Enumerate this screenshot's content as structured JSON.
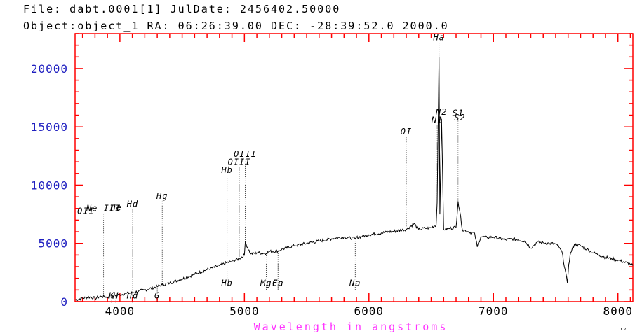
{
  "header": {
    "line1": "File: dabt.0001[1]   JulDate: 2456402.50000",
    "line2": "Object:object_1    RA: 06:26:39.00 DEC: -28:39:52.0 2000.0"
  },
  "corner_mark": "rv",
  "colors": {
    "frame": "#ff0000",
    "ytick_text": "#2020c0",
    "xlabel": "#ff33ff",
    "spectrum": "#000000"
  },
  "chart_data": {
    "type": "line",
    "xlabel": "Wavelength in angstroms",
    "ylabel": "",
    "xlim": [
      3640,
      8120
    ],
    "ylim": [
      0,
      23000
    ],
    "x_ticks": [
      4000,
      5000,
      6000,
      7000,
      8000
    ],
    "x_tick_labels": [
      "4000",
      "5000",
      "6000",
      "7000",
      "8000"
    ],
    "y_ticks": [
      0,
      5000,
      10000,
      15000,
      20000
    ],
    "y_tick_labels": [
      "0",
      "5000",
      "10000",
      "15000",
      "20000"
    ],
    "grid": false,
    "series": [
      {
        "x": [
          3640,
          3700,
          3760,
          3800,
          3850,
          3900,
          3950,
          4000,
          4050,
          4100,
          4150,
          4200,
          4300,
          4340,
          4400,
          4500,
          4600,
          4700,
          4800,
          4861,
          4900,
          4959,
          5000,
          5007,
          5050,
          5100,
          5175,
          5200,
          5270,
          5300,
          5400,
          5500,
          5600,
          5700,
          5800,
          5890,
          5900,
          6000,
          6100,
          6200,
          6300,
          6363,
          6400,
          6450,
          6500,
          6540,
          6548,
          6563,
          6570,
          6583,
          6600,
          6650,
          6700,
          6716,
          6731,
          6750,
          6800,
          6850,
          6870,
          6900,
          6950,
          7000,
          7100,
          7150,
          7200,
          7250,
          7300,
          7350,
          7400,
          7450,
          7500,
          7550,
          7594,
          7605,
          7620,
          7650,
          7700,
          7750,
          7800,
          7850,
          7900,
          7950,
          8000,
          8050,
          8100,
          8120
        ],
        "y": [
          150,
          300,
          400,
          280,
          450,
          380,
          500,
          600,
          700,
          750,
          900,
          1000,
          1300,
          1450,
          1600,
          1950,
          2350,
          2750,
          3100,
          3350,
          3450,
          3700,
          4000,
          5100,
          4100,
          4200,
          4150,
          4300,
          4350,
          4500,
          4800,
          5000,
          5200,
          5400,
          5550,
          5400,
          5500,
          5750,
          5900,
          6050,
          6200,
          6700,
          6200,
          6300,
          6350,
          6600,
          8500,
          21000,
          7500,
          15700,
          6200,
          6300,
          6400,
          8600,
          7700,
          6200,
          6000,
          5850,
          4700,
          5600,
          5500,
          5550,
          5300,
          5400,
          5300,
          5200,
          4600,
          5100,
          5050,
          5000,
          4950,
          4300,
          1600,
          3200,
          4200,
          4900,
          4800,
          4500,
          4200,
          4000,
          3800,
          3700,
          3550,
          3400,
          3200,
          3100
        ]
      }
    ],
    "annotations": [
      {
        "text": "OII",
        "x": 3727,
        "y_top": 7300,
        "y_bottom": 200,
        "label_pos": "top"
      },
      {
        "text": "Ne III",
        "x": 3869,
        "y_top": 7550,
        "y_bottom": 450,
        "label_pos": "top"
      },
      {
        "text": "He",
        "x": 3970,
        "y_top": 7600,
        "y_bottom": 500,
        "label_pos": "top"
      },
      {
        "text": "Hd",
        "x": 4102,
        "y_top": 7900,
        "y_bottom": 750,
        "label_pos": "top"
      },
      {
        "text": "Hg",
        "x": 4340,
        "y_top": 8600,
        "y_bottom": 1450,
        "label_pos": "top"
      },
      {
        "text": "Hb",
        "x": 4861,
        "y_top": 10800,
        "y_bottom": 3350,
        "label_pos": "top"
      },
      {
        "text": "OIII",
        "x": 4959,
        "y_top": 11500,
        "y_bottom": 3700,
        "label_pos": "top"
      },
      {
        "text": "OIII",
        "x": 5007,
        "y_top": 12200,
        "y_bottom": 5100,
        "label_pos": "top"
      },
      {
        "text": "OI",
        "x": 6300,
        "y_top": 14100,
        "y_bottom": 6200,
        "label_pos": "top"
      },
      {
        "text": "Ha",
        "x": 6563,
        "y_top": 22200,
        "y_bottom": 21000,
        "label_pos": "top"
      },
      {
        "text": "N2",
        "x": 6583,
        "y_top": 15800,
        "y_bottom": 15700,
        "label_pos": "top"
      },
      {
        "text": "S1",
        "x": 6716,
        "y_top": 15700,
        "y_bottom": 8600,
        "label_pos": "top"
      },
      {
        "text": "S2",
        "x": 6731,
        "y_top": 15300,
        "y_bottom": 7700,
        "label_pos": "top"
      },
      {
        "text": "N1",
        "x": 6548,
        "y_top": 15100,
        "y_bottom": 8500,
        "label_pos": "top"
      },
      {
        "text": "K",
        "x": 3934,
        "y_top": 500,
        "y_bottom": -100,
        "label_pos": "bottom"
      },
      {
        "text": "H",
        "x": 3968,
        "y_top": 500,
        "y_bottom": -100,
        "label_pos": "bottom"
      },
      {
        "text": "Hd",
        "x": 4102,
        "y_top": 700,
        "y_bottom": -100,
        "label_pos": "bottom"
      },
      {
        "text": "G",
        "x": 4300,
        "y_top": 1300,
        "y_bottom": -100,
        "label_pos": "bottom"
      },
      {
        "text": "Hb",
        "x": 4861,
        "y_top": 3350,
        "y_bottom": 1000,
        "label_pos": "bottom"
      },
      {
        "text": "Mg",
        "x": 5175,
        "y_top": 4150,
        "y_bottom": 1000,
        "label_pos": "bottom"
      },
      {
        "text": "Ca",
        "x": 5270,
        "y_top": 4350,
        "y_bottom": 1000,
        "label_pos": "bottom"
      },
      {
        "text": "Fe",
        "x": 5270,
        "y_top": 4350,
        "y_bottom": 1000,
        "label_pos": "bottom"
      },
      {
        "text": "Na",
        "x": 5890,
        "y_top": 5400,
        "y_bottom": 1000,
        "label_pos": "bottom"
      }
    ]
  }
}
